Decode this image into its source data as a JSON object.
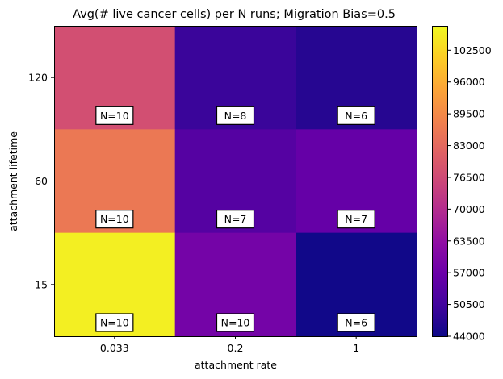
{
  "chart_data": {
    "type": "heatmap",
    "title": "Avg(# live cancer cells) per N runs; Migration Bias=0.5",
    "xlabel": "attachment rate",
    "ylabel": "attachment lifetime",
    "x_categories": [
      "0.033",
      "0.2",
      "1"
    ],
    "y_categories": [
      "120",
      "60",
      "15"
    ],
    "values": [
      [
        77500,
        49500,
        47000
      ],
      [
        86000,
        53500,
        56000
      ],
      [
        106000,
        58500,
        44500
      ]
    ],
    "counts": [
      [
        "N=10",
        "N=8",
        "N=6"
      ],
      [
        "N=10",
        "N=7",
        "N=7"
      ],
      [
        "N=10",
        "N=10",
        "N=6"
      ]
    ],
    "colorbar": {
      "colormap": "plasma",
      "range": [
        44000,
        107500
      ],
      "ticks": [
        "44000",
        "50500",
        "57000",
        "63500",
        "70000",
        "76500",
        "83000",
        "89500",
        "96000",
        "102500"
      ]
    }
  }
}
